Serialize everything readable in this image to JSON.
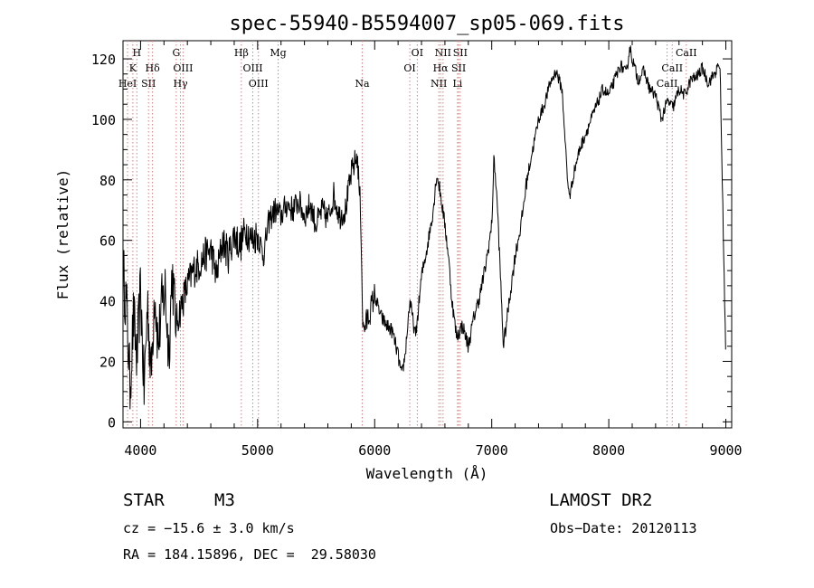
{
  "chart_data": {
    "type": "line",
    "title": "spec-55940-B5594007_sp05-069.fits",
    "xlabel": "Wavelength (Å)",
    "ylabel": "Flux (relative)",
    "xlim": [
      3850,
      9050
    ],
    "ylim": [
      -2,
      126
    ],
    "x_ticks": [
      4000,
      5000,
      6000,
      7000,
      8000,
      9000
    ],
    "y_ticks": [
      0,
      20,
      40,
      60,
      80,
      100,
      120
    ],
    "grid": false,
    "line_color": "#000000",
    "marker_color": "#d98080",
    "series": [
      {
        "x": [
          3850,
          3880,
          3910,
          3940,
          3970,
          4000,
          4030,
          4060,
          4090,
          4120,
          4150,
          4180,
          4210,
          4240,
          4270,
          4300,
          4330,
          4360,
          4400,
          4450,
          4500,
          4550,
          4600,
          4650,
          4700,
          4750,
          4800,
          4850,
          4900,
          4950,
          5000,
          5050,
          5100,
          5150,
          5200,
          5250,
          5300,
          5350,
          5400,
          5450,
          5500,
          5550,
          5600,
          5650,
          5700,
          5750,
          5800,
          5850,
          5880,
          5900,
          5950,
          6000,
          6050,
          6100,
          6150,
          6200,
          6230,
          6260,
          6300,
          6350,
          6400,
          6450,
          6500,
          6530,
          6560,
          6600,
          6630,
          6660,
          6700,
          6750,
          6800,
          6850,
          6900,
          6950,
          7000,
          7020,
          7050,
          7100,
          7150,
          7200,
          7250,
          7300,
          7350,
          7400,
          7450,
          7500,
          7550,
          7600,
          7620,
          7650,
          7670,
          7700,
          7750,
          7800,
          7850,
          7900,
          7950,
          8000,
          8050,
          8100,
          8150,
          8180,
          8200,
          8250,
          8300,
          8350,
          8400,
          8450,
          8500,
          8550,
          8600,
          8650,
          8700,
          8750,
          8800,
          8850,
          8900,
          8950,
          9000
        ],
        "y": [
          50,
          38,
          12,
          35,
          20,
          44,
          10,
          40,
          15,
          45,
          25,
          38,
          44,
          22,
          50,
          32,
          36,
          40,
          45,
          50,
          52,
          55,
          57,
          48,
          60,
          55,
          62,
          58,
          64,
          60,
          62,
          55,
          67,
          70,
          68,
          72,
          70,
          73,
          68,
          72,
          65,
          70,
          67,
          75,
          68,
          70,
          82,
          88,
          70,
          30,
          35,
          42,
          35,
          32,
          30,
          22,
          15,
          22,
          40,
          28,
          48,
          58,
          70,
          82,
          76,
          65,
          55,
          40,
          28,
          32,
          25,
          35,
          42,
          52,
          65,
          88,
          70,
          25,
          40,
          55,
          65,
          80,
          90,
          100,
          105,
          112,
          116,
          110,
          98,
          78,
          75,
          82,
          90,
          95,
          100,
          105,
          110,
          108,
          113,
          118,
          115,
          124,
          120,
          113,
          116,
          110,
          108,
          100,
          106,
          104,
          110,
          108,
          113,
          114,
          117,
          112,
          115,
          118,
          20
        ]
      }
    ],
    "line_markers": [
      {
        "label": "H",
        "x": 3968,
        "row": 0
      },
      {
        "label": "K",
        "x": 3934,
        "row": 1
      },
      {
        "label": "HeI",
        "x": 3889,
        "row": 2
      },
      {
        "label": "Hδ",
        "x": 4102,
        "row": 1
      },
      {
        "label": "SII",
        "x": 4068,
        "row": 2
      },
      {
        "label": "G",
        "x": 4305,
        "row": 0
      },
      {
        "label": "OIII",
        "x": 4363,
        "row": 1
      },
      {
        "label": "Hγ",
        "x": 4341,
        "row": 2
      },
      {
        "label": "Hβ",
        "x": 4861,
        "row": 0
      },
      {
        "label": "OIII",
        "x": 4959,
        "row": 1
      },
      {
        "label": "OIII",
        "x": 5007,
        "row": 2
      },
      {
        "label": "Mg",
        "x": 5175,
        "row": 0
      },
      {
        "label": "Na",
        "x": 5893,
        "row": 2
      },
      {
        "label": "OI",
        "x": 6364,
        "row": 0
      },
      {
        "label": "OI",
        "x": 6300,
        "row": 1
      },
      {
        "label": "NII",
        "x": 6584,
        "row": 0
      },
      {
        "label": "SII",
        "x": 6731,
        "row": 0
      },
      {
        "label": "Hα",
        "x": 6563,
        "row": 1
      },
      {
        "label": "SII",
        "x": 6717,
        "row": 1
      },
      {
        "label": "NII",
        "x": 6548,
        "row": 2
      },
      {
        "label": "Li",
        "x": 6708,
        "row": 2
      },
      {
        "label": "CaII",
        "x": 8662,
        "row": 0
      },
      {
        "label": "CaII",
        "x": 8542,
        "row": 1
      },
      {
        "label": "CaII",
        "x": 8498,
        "row": 2
      }
    ]
  },
  "info": {
    "object_class": "STAR",
    "subclass": "M3",
    "survey": "LAMOST DR2",
    "cz": "cz = −15.6 ± 3.0 km/s",
    "obs_date": "Obs−Date: 20120113",
    "coords": "RA = 184.15896, DEC =  29.58030"
  }
}
